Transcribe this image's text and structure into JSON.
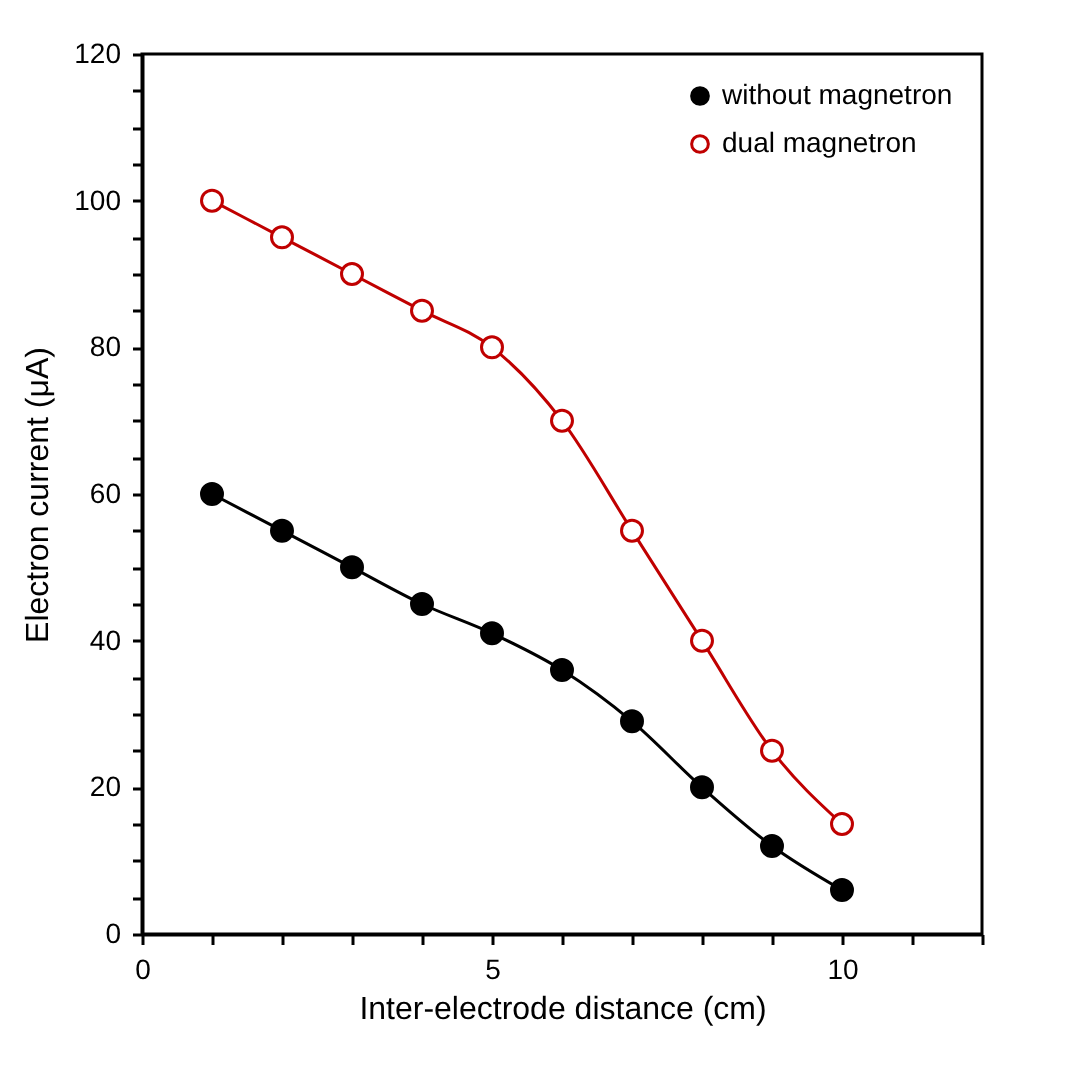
{
  "chart_data": {
    "type": "line",
    "xlabel": "Inter-electrode distance (cm)",
    "ylabel": "Electron current (μA)",
    "x": [
      1,
      2,
      3,
      4,
      5,
      6,
      7,
      8,
      9,
      10
    ],
    "series": [
      {
        "name": "without magnetron",
        "color": "#000000",
        "values": [
          60,
          55,
          50,
          45,
          41,
          36,
          29,
          20,
          12,
          6
        ]
      },
      {
        "name": "dual magnetron",
        "color": "#c00000",
        "values": [
          100,
          95,
          90,
          85,
          80,
          70,
          55,
          40,
          25,
          15
        ]
      }
    ],
    "xlim": [
      0,
      12
    ],
    "xticks": [
      0,
      {
        "value": 1,
        "label": null
      },
      {
        "value": 2,
        "label": null
      },
      {
        "value": 3,
        "label": null
      },
      {
        "value": 4,
        "label": null
      },
      5,
      {
        "value": 6,
        "label": null
      },
      {
        "value": 7,
        "label": null
      },
      {
        "value": 8,
        "label": null
      },
      {
        "value": 9,
        "label": null
      },
      10,
      {
        "value": 11,
        "label": null
      },
      {
        "value": 12,
        "label": null
      }
    ],
    "ylim": [
      0,
      120
    ],
    "yticks": [
      0,
      {
        "value": 5,
        "label": null
      },
      {
        "value": 10,
        "label": null
      },
      {
        "value": 15,
        "label": null
      },
      20,
      {
        "value": 25,
        "label": null
      },
      {
        "value": 30,
        "label": null
      },
      {
        "value": 35,
        "label": null
      },
      40,
      {
        "value": 45,
        "label": null
      },
      {
        "value": 50,
        "label": null
      },
      {
        "value": 55,
        "label": null
      },
      60,
      {
        "value": 65,
        "label": null
      },
      {
        "value": 70,
        "label": null
      },
      {
        "value": 75,
        "label": null
      },
      80,
      {
        "value": 85,
        "label": null
      },
      {
        "value": 90,
        "label": null
      },
      {
        "value": 95,
        "label": null
      },
      100,
      {
        "value": 105,
        "label": null
      },
      {
        "value": 110,
        "label": null
      },
      {
        "value": 115,
        "label": null
      },
      120
    ],
    "grid": false,
    "legend": "top right",
    "marker": "circle",
    "line_style": "solid"
  }
}
